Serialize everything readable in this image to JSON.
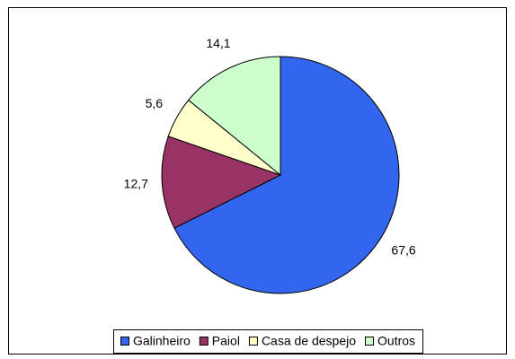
{
  "chart_data": {
    "type": "pie",
    "categories": [
      "Galinheiro",
      "Paiol",
      "Casa de despejo",
      "Outros"
    ],
    "values": [
      67.6,
      12.7,
      5.6,
      14.1
    ],
    "value_labels": [
      "67,6",
      "12,7",
      "5,6",
      "14,1"
    ],
    "colors": [
      "#3366ee",
      "#993366",
      "#ffffcc",
      "#ccffcc"
    ],
    "legend": "bottom"
  }
}
